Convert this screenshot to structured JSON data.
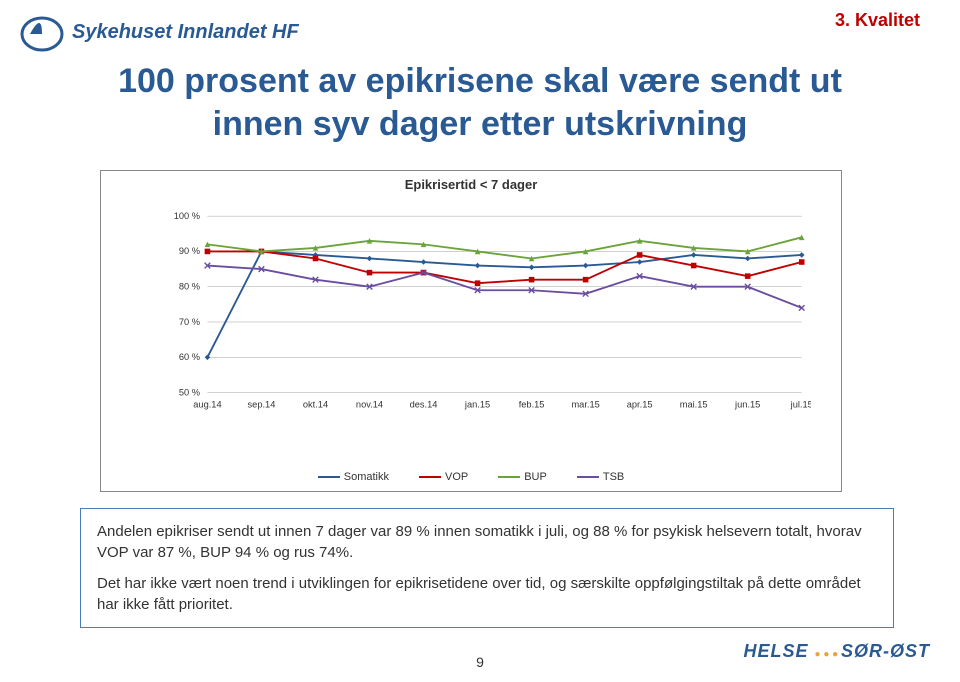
{
  "tag": "3. Kvalitet",
  "logo_text": "Sykehuset Innlandet HF",
  "title_line1": "100 prosent av epikrisene skal være sendt ut",
  "title_line2": "innen syv dager etter utskrivning",
  "title_color": "#2a5a93",
  "pagenum": "9",
  "footer_brand": "HELSE ••• SØR-ØST",
  "footer_color1": "#2a5a93",
  "footer_color2": "#e8a33d",
  "textbox_p1": "Andelen epikriser sendt ut innen 7 dager var 89 % innen somatikk i juli, og 88 % for psykisk helsevern totalt, hvorav VOP var 87 %, BUP 94 % og rus 74%.",
  "textbox_p2": "Det har ikke vært noen trend i utviklingen for epikrisetidene over tid, og særskilte oppfølgingstiltak på dette området har ikke fått prioritet.",
  "chart": {
    "title": "Epikrisertid < 7 dager",
    "background": "#ffffff",
    "grid_color": "#999999",
    "x_labels": [
      "aug.14",
      "sep.14",
      "okt.14",
      "nov.14",
      "des.14",
      "jan.15",
      "feb.15",
      "mar.15",
      "apr.15",
      "mai.15",
      "jun.15",
      "jul.15"
    ],
    "y_min": 50,
    "y_max": 100,
    "y_step": 10,
    "y_labels": [
      "50 %",
      "60 %",
      "70 %",
      "80 %",
      "90 %",
      "100 %"
    ],
    "series": [
      {
        "name": "Somatikk",
        "color": "#2a5a93",
        "marker": "diamond",
        "values": [
          60,
          90,
          89,
          88,
          87,
          86,
          85.5,
          86,
          87,
          89,
          88,
          89
        ]
      },
      {
        "name": "VOP",
        "color": "#c00000",
        "marker": "square",
        "values": [
          90,
          90,
          88,
          84,
          84,
          81,
          82,
          82,
          89,
          86,
          83,
          87
        ]
      },
      {
        "name": "BUP",
        "color": "#6aa33a",
        "marker": "triangle",
        "values": [
          92,
          90,
          91,
          93,
          92,
          90,
          88,
          90,
          93,
          91,
          90,
          94
        ]
      },
      {
        "name": "TSB",
        "color": "#6a4d9e",
        "marker": "cross",
        "values": [
          86,
          85,
          82,
          80,
          84,
          79,
          79,
          78,
          83,
          80,
          80,
          74
        ]
      }
    ],
    "label_fontsize": 10,
    "title_fontsize": 13,
    "line_width": 2
  }
}
